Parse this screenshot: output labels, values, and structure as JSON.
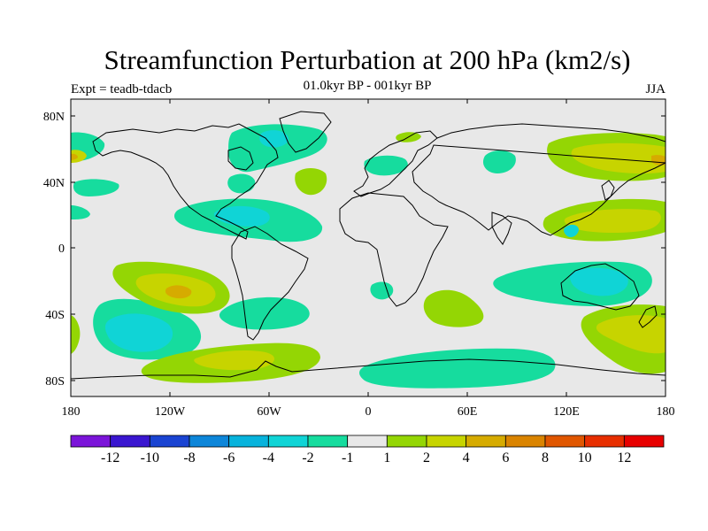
{
  "title": "Streamfunction Perturbation at 200 hPa (km2/s)",
  "left_subtitle": "Expt = teadb-tdacb",
  "center_subtitle": "01.0kyr BP - 001kyr BP",
  "right_subtitle": "JJA",
  "lat_labels": [
    "80N",
    "40N",
    "0",
    "40S",
    "80S"
  ],
  "lon_labels": [
    "180",
    "120W",
    "60W",
    "0",
    "60E",
    "120E",
    "180"
  ],
  "colorbar": {
    "labels": [
      "-12",
      "-10",
      "-8",
      "-6",
      "-4",
      "-2",
      "-1",
      "1",
      "2",
      "4",
      "6",
      "8",
      "10",
      "12"
    ],
    "colors": [
      "#7b14d9",
      "#3a16d0",
      "#1a44d2",
      "#0d86d9",
      "#07b3dc",
      "#10d4d6",
      "#16dc9e",
      "#e8e8e8",
      "#94d604",
      "#c7d400",
      "#d6ab00",
      "#da8400",
      "#e05600",
      "#e72e00",
      "#e70000"
    ]
  },
  "chart_data": {
    "type": "heatmap",
    "title": "Streamfunction Perturbation at 200 hPa (km2/s)",
    "subtitle_left": "Expt = teadb-tdacb",
    "subtitle_center": "01.0kyr BP - 001kyr BP",
    "subtitle_right": "JJA",
    "levels": [
      -12,
      -10,
      -8,
      -6,
      -4,
      -2,
      -1,
      1,
      2,
      4,
      6,
      8,
      10,
      12
    ],
    "x_range": [
      -180,
      180
    ],
    "y_range": [
      -90,
      90
    ],
    "features": [
      {
        "lon": -155,
        "lat": -55,
        "value": -4
      },
      {
        "lon": -145,
        "lat": -50,
        "value": -2
      },
      {
        "lon": -115,
        "lat": -25,
        "value": 6
      },
      {
        "lon": -105,
        "lat": -28,
        "value": 2
      },
      {
        "lon": -75,
        "lat": 20,
        "value": -4
      },
      {
        "lon": -85,
        "lat": 22,
        "value": -2
      },
      {
        "lon": -60,
        "lat": 60,
        "value": -2
      },
      {
        "lon": -65,
        "lat": -45,
        "value": -2
      },
      {
        "lon": -75,
        "lat": -68,
        "value": 4
      },
      {
        "lon": -85,
        "lat": -68,
        "value": 2
      },
      {
        "lon": -35,
        "lat": 42,
        "value": 2
      },
      {
        "lon": 5,
        "lat": 55,
        "value": -2
      },
      {
        "lon": 18,
        "lat": 70,
        "value": 2
      },
      {
        "lon": 18,
        "lat": -25,
        "value": -2
      },
      {
        "lon": 52,
        "lat": 55,
        "value": -2
      },
      {
        "lon": 53,
        "lat": -38,
        "value": 2
      },
      {
        "lon": 40,
        "lat": -73,
        "value": -2
      },
      {
        "lon": 145,
        "lat": 20,
        "value": 4
      },
      {
        "lon": 140,
        "lat": 18,
        "value": 2
      },
      {
        "lon": 140,
        "lat": -25,
        "value": -4
      },
      {
        "lon": 130,
        "lat": -22,
        "value": -2
      },
      {
        "lon": 160,
        "lat": 58,
        "value": 4
      },
      {
        "lon": 150,
        "lat": 58,
        "value": 2
      },
      {
        "lon": 155,
        "lat": -50,
        "value": 4
      },
      {
        "lon": 160,
        "lat": -55,
        "value": 2
      },
      {
        "lon": -165,
        "lat": 55,
        "value": -2
      },
      {
        "lon": -160,
        "lat": 38,
        "value": -2
      },
      {
        "lon": -175,
        "lat": 20,
        "value": -2
      },
      {
        "lon": -178,
        "lat": -50,
        "value": 2
      }
    ]
  }
}
